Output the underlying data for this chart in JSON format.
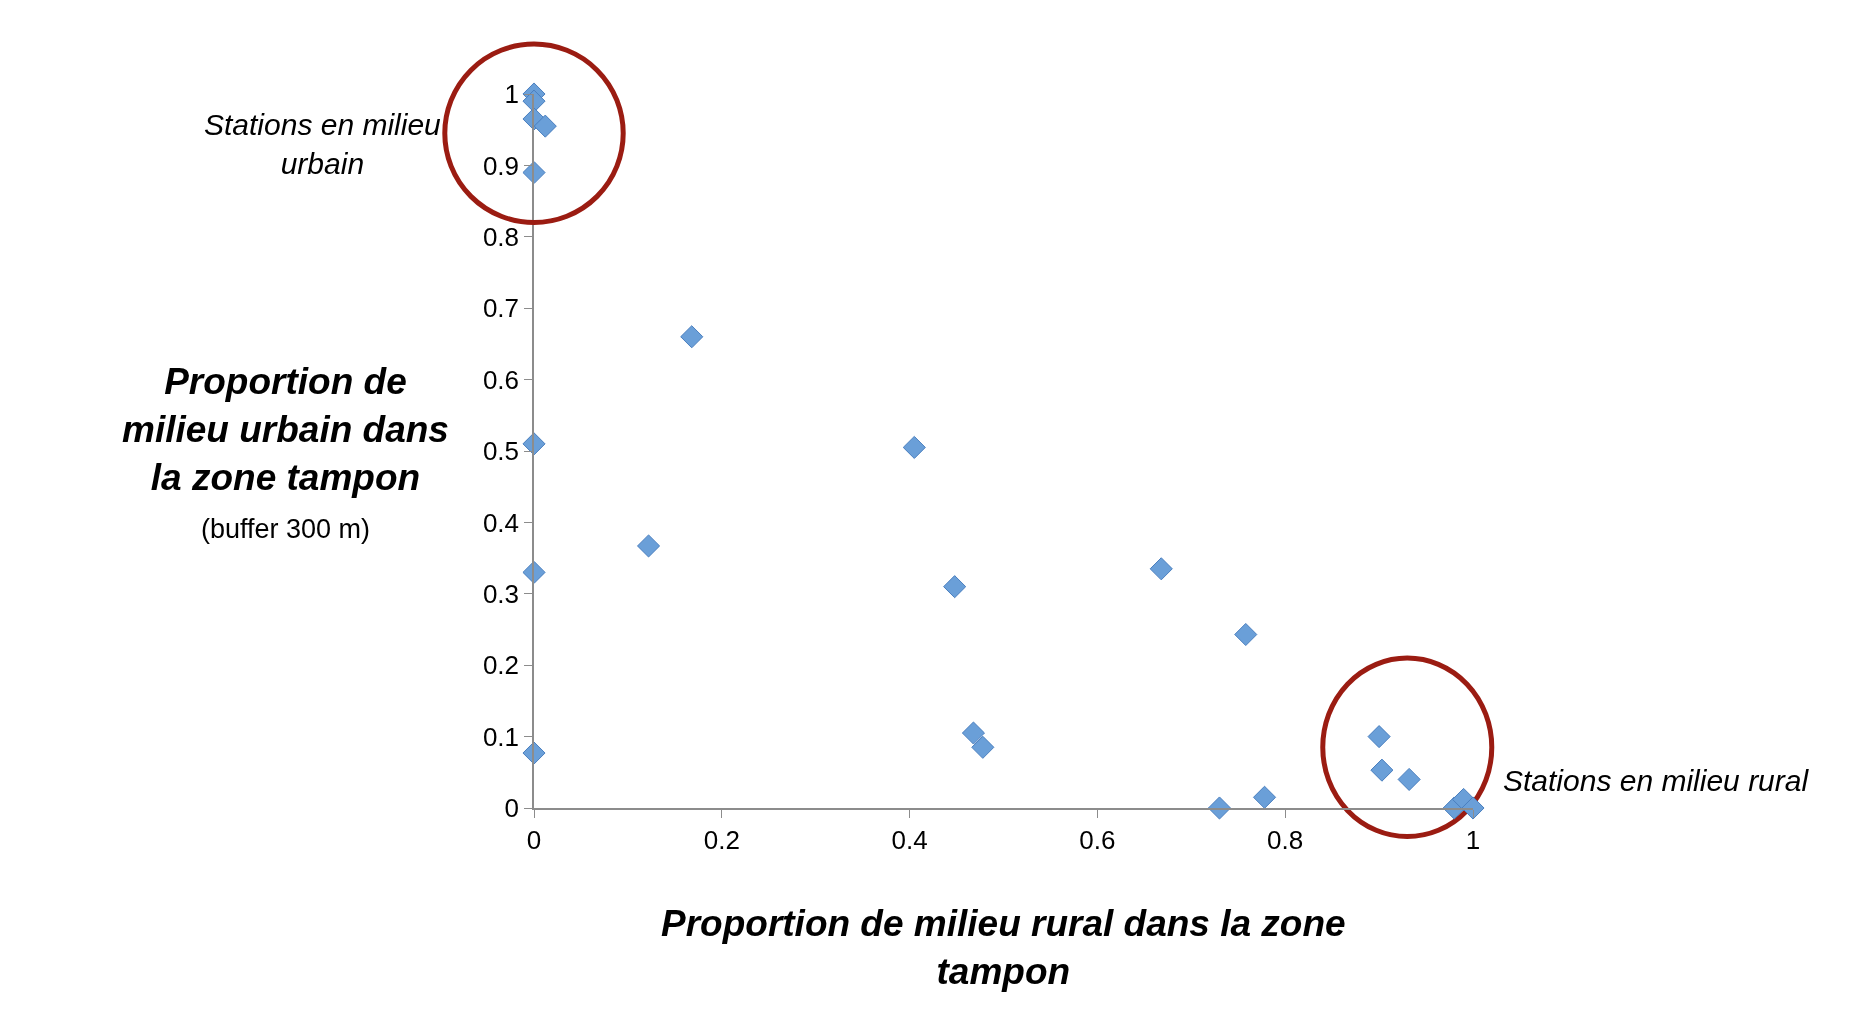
{
  "chart_data": {
    "type": "scatter",
    "xlabel": "Proportion de milieu rural dans la zone tampon",
    "ylabel": "Proportion de milieu urbain dans la zone tampon",
    "annotations": [
      "(buffer 300 m)",
      "Stations en milieu urbain",
      "Stations en milieu rural"
    ],
    "series": [
      {
        "color": "#6a9fd8",
        "x": [
          0,
          0,
          0,
          0.012,
          0,
          0.168,
          0,
          0.405,
          0.122,
          0,
          0.448,
          0.668,
          0.758,
          0.468,
          0.478,
          0,
          0.73,
          0.778,
          0.9,
          0.903,
          0.932,
          0.98,
          0.99,
          1.0
        ],
        "values": [
          1.0,
          0.99,
          0.965,
          0.955,
          0.89,
          0.66,
          0.51,
          0.505,
          0.367,
          0.33,
          0.31,
          0.335,
          0.243,
          0.105,
          0.085,
          0.077,
          0,
          0.015,
          0.1,
          0.053,
          0.04,
          0,
          0.012,
          0
        ]
      }
    ],
    "xlim": [
      0,
      1
    ],
    "ylim": [
      0,
      1
    ],
    "xticks": [
      0,
      0.2,
      0.4,
      0.6,
      0.8,
      1
    ],
    "yticks": [
      0,
      0.1,
      0.2,
      0.3,
      0.4,
      0.5,
      0.6,
      0.7,
      0.8,
      0.9,
      1
    ],
    "marker": "diamond",
    "grid": false,
    "legend": false
  }
}
